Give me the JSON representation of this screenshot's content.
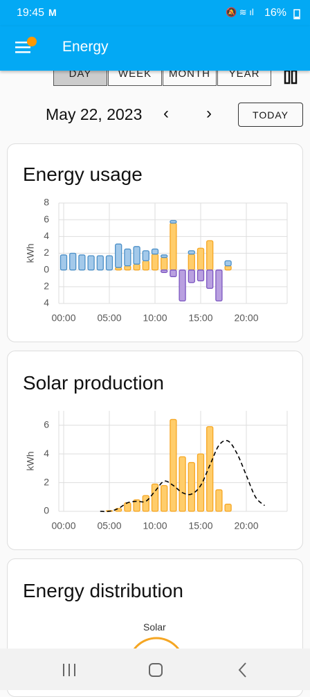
{
  "status_bar": {
    "time": "19:45",
    "battery": "16%"
  },
  "header": {
    "title": "Energy"
  },
  "tabs": [
    "DAY",
    "WEEK",
    "MONTH",
    "YEAR"
  ],
  "selected_tab": 0,
  "date": "May 22, 2023",
  "today_button": "TODAY",
  "cards": [
    {
      "title": "Energy usage",
      "chart": {
        "type": "bar",
        "stacked": true,
        "ylabel": "kWh",
        "categories": [
          "00:00",
          null,
          null,
          null,
          null,
          "05:00",
          null,
          null,
          null,
          null,
          "10:00",
          null,
          null,
          null,
          null,
          "15:00",
          null,
          null,
          null,
          null,
          "20:00",
          null,
          null,
          null
        ],
        "ylim": [
          -4,
          8
        ],
        "yticks": [
          {
            "value": -4,
            "label": "4"
          },
          {
            "value": -2,
            "label": "2"
          },
          0,
          2,
          4,
          6,
          8
        ],
        "grid": true,
        "series": [
          {
            "color": "#ffcd6b",
            "edge": "#f5a623",
            "values": [
              null,
              null,
              null,
              null,
              null,
              null,
              0.3,
              0.5,
              0.7,
              1.1,
              1.9,
              1.5,
              5.6,
              null,
              1.9,
              2.6,
              3.5,
              null,
              0.5,
              null,
              null,
              null,
              null,
              null
            ]
          },
          {
            "color": "#a3c9ea",
            "edge": "#4b8fc7",
            "values": [
              1.8,
              2.0,
              1.8,
              1.7,
              1.7,
              1.7,
              2.8,
              2.0,
              2.1,
              1.2,
              0.6,
              0.3,
              0.3,
              null,
              0.4,
              null,
              null,
              null,
              0.6,
              null,
              null,
              null,
              null,
              null
            ]
          },
          {
            "color": "#b9a0e0",
            "edge": "#7b55c0",
            "values": [
              null,
              null,
              null,
              null,
              null,
              null,
              null,
              null,
              null,
              null,
              null,
              -0.3,
              -0.8,
              -3.7,
              -1.5,
              -1.3,
              -2.2,
              -3.7,
              null,
              null,
              null,
              null,
              null,
              null
            ]
          }
        ]
      }
    },
    {
      "title": "Solar production",
      "chart": {
        "type": "bar",
        "stacked": false,
        "ylabel": "kWh",
        "categories": [
          "00:00",
          null,
          null,
          null,
          null,
          "05:00",
          null,
          null,
          null,
          null,
          "10:00",
          null,
          null,
          null,
          null,
          "15:00",
          null,
          null,
          null,
          null,
          "20:00",
          null,
          null,
          null
        ],
        "ylim": [
          0,
          7
        ],
        "yticks": [
          0,
          2,
          4,
          6
        ],
        "grid": true,
        "series": [
          {
            "type": "bar",
            "color": "#ffcd6b",
            "edge": "#f5a623",
            "values": [
              null,
              null,
              null,
              null,
              null,
              0.05,
              0.2,
              0.6,
              0.8,
              1.1,
              1.9,
              1.8,
              6.4,
              3.8,
              3.4,
              4.0,
              5.9,
              1.5,
              0.5,
              null,
              null,
              null,
              null,
              null
            ]
          },
          {
            "type": "line",
            "color": "#000000",
            "dashed": true,
            "x": [
              4,
              5,
              6,
              7,
              8,
              9,
              10,
              11,
              12,
              13,
              14,
              15,
              16,
              17,
              18,
              19,
              20,
              21,
              22
            ],
            "values": [
              0,
              0,
              0.2,
              0.6,
              0.7,
              0.7,
              1.4,
              2.1,
              1.8,
              1.3,
              1.2,
              1.8,
              3.2,
              4.6,
              4.9,
              4.0,
              2.5,
              1.0,
              0.4
            ]
          }
        ]
      }
    },
    {
      "title": "Energy distribution",
      "nodes": [
        {
          "label": "Solar"
        }
      ]
    }
  ]
}
